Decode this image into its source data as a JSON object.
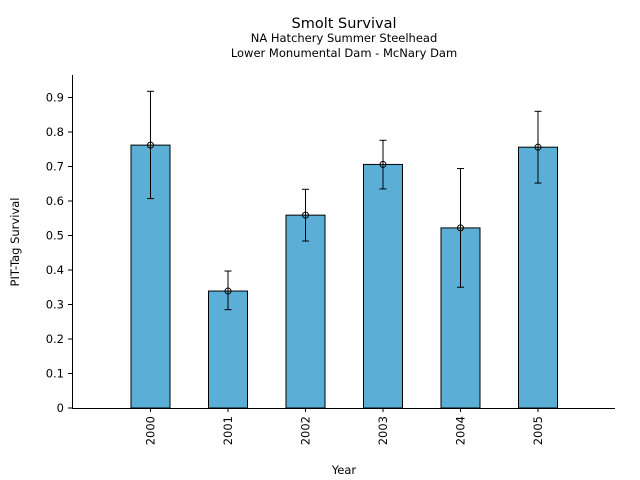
{
  "chart_data": {
    "type": "bar",
    "title": "Smolt Survival",
    "subtitle_lines": [
      "NA Hatchery Summer Steelhead",
      "Lower Monumental Dam - McNary Dam"
    ],
    "xlabel": "Year",
    "ylabel": "PIT-Tag Survival",
    "categories": [
      "2000",
      "2001",
      "2002",
      "2003",
      "2004",
      "2005"
    ],
    "values": [
      0.762,
      0.339,
      0.559,
      0.706,
      0.522,
      0.756
    ],
    "error_low": [
      0.607,
      0.285,
      0.484,
      0.635,
      0.35,
      0.652
    ],
    "error_high": [
      0.918,
      0.397,
      0.634,
      0.776,
      0.694,
      0.86
    ],
    "ylim": [
      0,
      0.97
    ],
    "yticks": [
      "0",
      "0.1",
      "0.2",
      "0.3",
      "0.4",
      "0.5",
      "0.6",
      "0.7",
      "0.8",
      "0.9"
    ],
    "bar_color": "#5bafd7",
    "grid": false,
    "legend": "none"
  }
}
